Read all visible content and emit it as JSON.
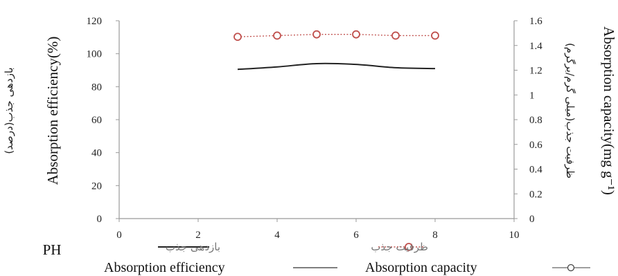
{
  "chart_data": {
    "type": "line",
    "x": [
      3,
      4,
      5,
      6,
      7,
      8
    ],
    "xlim": [
      0,
      10
    ],
    "x_ticks": [
      "0",
      "2",
      "4",
      "6",
      "8",
      "10"
    ],
    "xlabel": "PH",
    "ylabel_left": "Absorption efficiency(%)",
    "ylabel_left_fa": "بازدهی جذب(درصد)",
    "ylim_left": [
      0,
      120
    ],
    "y_ticks_left": [
      "0",
      "20",
      "40",
      "60",
      "80",
      "100",
      "120"
    ],
    "ylabel_right": "Absorption capacity(mg g⁻¹)",
    "ylabel_right_fa": "ظرفیت جذب(میلی گرم/برگرم)",
    "ylim_right": [
      0,
      1.6
    ],
    "y_ticks_right": [
      "0",
      "0.2",
      "0.4",
      "0.6",
      "0.8",
      "1",
      "1.2",
      "1.4",
      "1.6"
    ],
    "series": [
      {
        "name": "Absorption efficiency",
        "name_fa": "بازدهی جذب",
        "axis": "left",
        "style": "solid",
        "color": "#222222",
        "values": [
          90.5,
          92,
          94,
          93.5,
          91.5,
          91
        ]
      },
      {
        "name": "Absorption capacity",
        "name_fa": "ظرفیت جذب",
        "axis": "right",
        "style": "dotted-circle",
        "color": "#c0504d",
        "values": [
          1.47,
          1.48,
          1.49,
          1.49,
          1.48,
          1.48
        ]
      }
    ],
    "grid": false,
    "legend": "bottom"
  }
}
